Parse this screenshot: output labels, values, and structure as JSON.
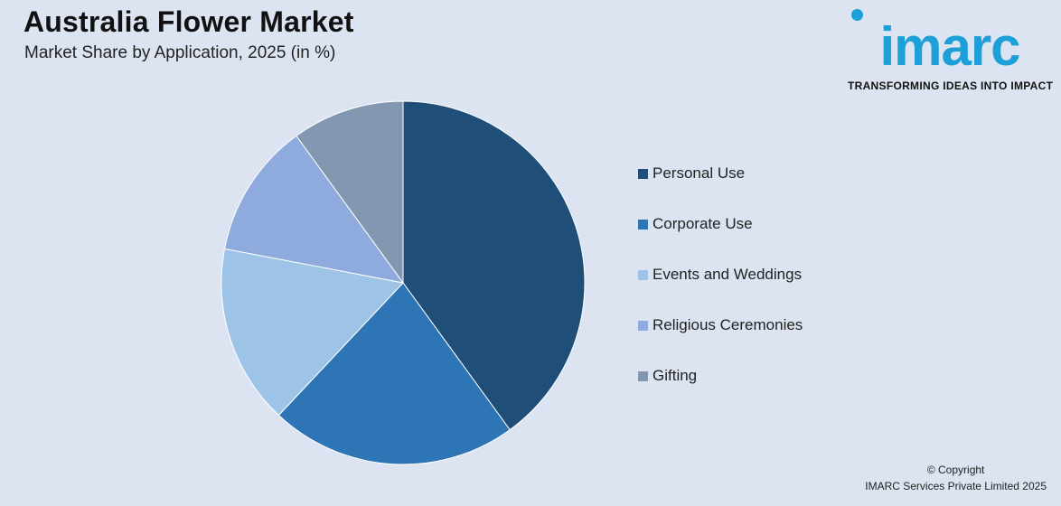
{
  "header": {
    "title": "Australia Flower Market",
    "subtitle": "Market Share by Application, 2025 (in %)"
  },
  "logo": {
    "brand": "imarc",
    "tagline": "TRANSFORMING IDEAS INTO IMPACT",
    "color": "#1d9fd8"
  },
  "chart_data": {
    "type": "pie",
    "title": "Australia Flower Market",
    "subtitle": "Market Share by Application, 2025 (in %)",
    "legend_position": "right",
    "categories": [
      "Personal Use",
      "Corporate Use",
      "Events and Weddings",
      "Religious Ceremonies",
      "Gifting"
    ],
    "values": [
      40,
      22,
      16,
      12,
      10
    ],
    "colors": [
      "#1f4e79",
      "#2e75b6",
      "#9dc3e6",
      "#8faadc",
      "#8497b0"
    ]
  },
  "footer": {
    "copyright_line1": "© Copyright",
    "copyright_line2": "IMARC Services Private Limited 2025"
  }
}
